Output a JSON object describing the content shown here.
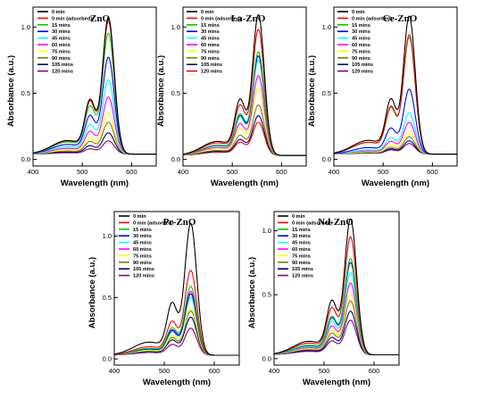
{
  "chart_data": [
    {
      "type": "line",
      "title": "ZnO",
      "xlabel": "Wavelength (nm)",
      "ylabel": "Absorbance (a.u.)",
      "xlim": [
        400,
        650
      ],
      "ylim": [
        -0.05,
        1.15
      ],
      "xticks": [
        "400",
        "500",
        "600"
      ],
      "yticks": [
        "0.0",
        "0.5",
        "1.0"
      ],
      "series": [
        {
          "name": "0 min",
          "color": "#000000",
          "peak": 1.03,
          "baseline": 0.04
        },
        {
          "name": "0 min (adsorbed)",
          "color": "#ff0000",
          "peak": 1.0,
          "baseline": 0.04
        },
        {
          "name": "15 mins",
          "color": "#00cc00",
          "peak": 0.91,
          "baseline": 0.04
        },
        {
          "name": "30 mins",
          "color": "#0000ff",
          "peak": 0.73,
          "baseline": 0.04
        },
        {
          "name": "45 mins",
          "color": "#00ffff",
          "peak": 0.56,
          "baseline": 0.04
        },
        {
          "name": "60 mins",
          "color": "#ff00ff",
          "peak": 0.43,
          "baseline": 0.04
        },
        {
          "name": "75 mins",
          "color": "#ffff00",
          "peak": 0.31,
          "baseline": 0.04
        },
        {
          "name": "90 mins",
          "color": "#808000",
          "peak": 0.24,
          "baseline": 0.04
        },
        {
          "name": "105 mins",
          "color": "#000080",
          "peak": 0.16,
          "baseline": 0.04
        },
        {
          "name": "120 mins",
          "color": "#800080",
          "peak": 0.1,
          "baseline": 0.04
        }
      ]
    },
    {
      "type": "line",
      "title": "La-ZnO",
      "xlabel": "Wavelength (nm)",
      "ylabel": "Absorbance (a.u.)",
      "xlim": [
        400,
        650
      ],
      "ylim": [
        -0.05,
        1.15
      ],
      "xticks": [
        "400",
        "500",
        "600"
      ],
      "yticks": [
        "0.0",
        "0.5",
        "1.0"
      ],
      "series": [
        {
          "name": "0 min",
          "color": "#000000",
          "peak": 1.06,
          "baseline": 0.03
        },
        {
          "name": "0 min (adsorbed)",
          "color": "#ff0000",
          "peak": 0.95,
          "baseline": 0.03
        },
        {
          "name": "15 mins",
          "color": "#00cc00",
          "peak": 0.78,
          "baseline": 0.03
        },
        {
          "name": "30 mins",
          "color": "#0000ff",
          "peak": 0.75,
          "baseline": 0.03
        },
        {
          "name": "45 mins",
          "color": "#00ffff",
          "peak": 0.72,
          "baseline": 0.03
        },
        {
          "name": "60 mins",
          "color": "#ff00ff",
          "peak": 0.6,
          "baseline": 0.03
        },
        {
          "name": "75 mins",
          "color": "#ffff00",
          "peak": 0.51,
          "baseline": 0.03
        },
        {
          "name": "90 mins",
          "color": "#808000",
          "peak": 0.38,
          "baseline": 0.03
        },
        {
          "name": "105 mins",
          "color": "#000080",
          "peak": 0.3,
          "baseline": 0.03
        },
        {
          "name": "120 mins",
          "color": "#ff0000",
          "peak": 0.25,
          "baseline": 0.03
        }
      ]
    },
    {
      "type": "line",
      "title": "Ce-ZnO",
      "xlabel": "Wavelength (nm)",
      "ylabel": "Absorbance (a.u.)",
      "xlim": [
        400,
        650
      ],
      "ylim": [
        -0.05,
        1.15
      ],
      "xticks": [
        "400",
        "500",
        "600"
      ],
      "yticks": [
        "0.0",
        "0.5",
        "1.0"
      ],
      "series": [
        {
          "name": "0 min",
          "color": "#000000",
          "peak": 1.04,
          "baseline": 0.04
        },
        {
          "name": "0 min (adsorbed)",
          "color": "#ff0000",
          "peak": 0.9,
          "baseline": 0.04
        },
        {
          "name": "15 mins",
          "color": "#00cc00",
          "peak": 0.88,
          "baseline": 0.04
        },
        {
          "name": "30 mins",
          "color": "#0000ff",
          "peak": 0.49,
          "baseline": 0.04
        },
        {
          "name": "45 mins",
          "color": "#00ffff",
          "peak": 0.31,
          "baseline": 0.04
        },
        {
          "name": "60 mins",
          "color": "#ff00ff",
          "peak": 0.24,
          "baseline": 0.04
        },
        {
          "name": "75 mins",
          "color": "#ffff00",
          "peak": 0.17,
          "baseline": 0.04
        },
        {
          "name": "90 mins",
          "color": "#808000",
          "peak": 0.13,
          "baseline": 0.04
        },
        {
          "name": "105 mins",
          "color": "#000080",
          "peak": 0.1,
          "baseline": 0.04
        },
        {
          "name": "120 mins",
          "color": "#800080",
          "peak": 0.08,
          "baseline": 0.04
        }
      ]
    },
    {
      "type": "line",
      "title": "Pr-ZnO",
      "xlabel": "Wavelength (nm)",
      "ylabel": "Absorbance (a.u.)",
      "xlim": [
        400,
        650
      ],
      "ylim": [
        -0.05,
        1.2
      ],
      "xticks": [
        "400",
        "500",
        "600"
      ],
      "yticks": [
        "0.0",
        "0.5",
        "1.0"
      ],
      "series": [
        {
          "name": "0 min",
          "color": "#000000",
          "peak": 1.07,
          "baseline": 0.03
        },
        {
          "name": "0 min (adsorbed)",
          "color": "#ff0000",
          "peak": 0.69,
          "baseline": 0.03
        },
        {
          "name": "15 mins",
          "color": "#00cc00",
          "peak": 0.56,
          "baseline": 0.03
        },
        {
          "name": "30 mins",
          "color": "#0000ff",
          "peak": 0.5,
          "baseline": 0.03
        },
        {
          "name": "45 mins",
          "color": "#00ffff",
          "peak": 0.47,
          "baseline": 0.03
        },
        {
          "name": "60 mins",
          "color": "#ff00ff",
          "peak": 0.52,
          "baseline": 0.03
        },
        {
          "name": "75 mins",
          "color": "#ffff00",
          "peak": 0.39,
          "baseline": 0.03
        },
        {
          "name": "90 mins",
          "color": "#808000",
          "peak": 0.36,
          "baseline": 0.03
        },
        {
          "name": "105 mins",
          "color": "#000080",
          "peak": 0.31,
          "baseline": 0.03
        },
        {
          "name": "120 mins",
          "color": "#800080",
          "peak": 0.22,
          "baseline": 0.03
        }
      ]
    },
    {
      "type": "line",
      "title": "Nd-ZnO",
      "xlabel": "Wavelength (nm)",
      "ylabel": "Absorbance (a.u.)",
      "xlim": [
        400,
        650
      ],
      "ylim": [
        -0.05,
        1.15
      ],
      "xticks": [
        "400",
        "500",
        "600"
      ],
      "yticks": [
        "0.0",
        "0.5",
        "1.0"
      ],
      "series": [
        {
          "name": "0 min",
          "color": "#000000",
          "peak": 1.06,
          "baseline": 0.03
        },
        {
          "name": "0 min (adsorbed)",
          "color": "#ff0000",
          "peak": 0.92,
          "baseline": 0.03
        },
        {
          "name": "15 mins",
          "color": "#00cc00",
          "peak": 0.75,
          "baseline": 0.03
        },
        {
          "name": "30 mins",
          "color": "#0000ff",
          "peak": 0.72,
          "baseline": 0.03
        },
        {
          "name": "45 mins",
          "color": "#00ffff",
          "peak": 0.64,
          "baseline": 0.03
        },
        {
          "name": "60 mins",
          "color": "#ff00ff",
          "peak": 0.56,
          "baseline": 0.03
        },
        {
          "name": "75 mins",
          "color": "#ffff00",
          "peak": 0.48,
          "baseline": 0.03
        },
        {
          "name": "90 mins",
          "color": "#808000",
          "peak": 0.42,
          "baseline": 0.03
        },
        {
          "name": "105 mins",
          "color": "#000080",
          "peak": 0.34,
          "baseline": 0.03
        },
        {
          "name": "120 mins",
          "color": "#800080",
          "peak": 0.27,
          "baseline": 0.03
        }
      ]
    }
  ]
}
